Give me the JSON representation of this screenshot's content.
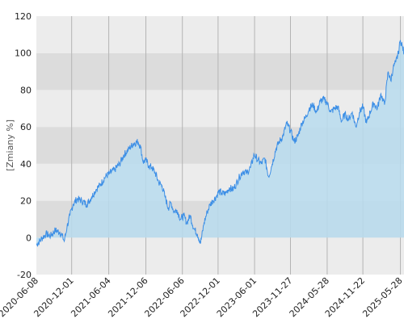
{
  "chart_data": {
    "type": "area",
    "title": "",
    "xlabel": "",
    "ylabel": "[Zmiany %]",
    "ylim": [
      -20,
      120
    ],
    "y_ticks": [
      -20,
      0,
      20,
      40,
      60,
      80,
      100,
      120
    ],
    "x_tick_labels": [
      "2020-06-08",
      "2020-12-01",
      "2021-06-04",
      "2021-12-06",
      "2022-06-06",
      "2022-12-01",
      "2023-06-01",
      "2023-11-27",
      "2024-05-28",
      "2024-11-22",
      "2025-05-28"
    ],
    "xlim": [
      "2020-06-08",
      "2025-06-15"
    ],
    "grid": true,
    "colors": {
      "line": "#3d8fe6",
      "fill": "#b8dcee",
      "fill_opacity": 0.85,
      "band_light": "#ececec",
      "band_dark": "#dcdcdc",
      "grid": "#b4b4b4"
    },
    "series": [
      {
        "x": [
          "2020-06-08",
          "2020-07-01",
          "2020-07-25",
          "2020-08-18",
          "2020-09-10",
          "2020-10-03",
          "2020-10-15",
          "2020-10-25",
          "2020-11-08",
          "2020-11-22",
          "2020-12-08",
          "2020-12-28",
          "2021-01-20",
          "2021-02-15",
          "2021-03-10",
          "2021-04-01",
          "2021-04-25",
          "2021-05-18",
          "2021-06-10",
          "2021-07-05",
          "2021-07-28",
          "2021-08-20",
          "2021-09-12",
          "2021-10-05",
          "2021-10-28",
          "2021-11-10",
          "2021-11-22",
          "2021-12-06",
          "2021-12-20",
          "2022-01-05",
          "2022-01-22",
          "2022-02-08",
          "2022-02-25",
          "2022-03-12",
          "2022-03-28",
          "2022-04-10",
          "2022-04-25",
          "2022-05-10",
          "2022-05-28",
          "2022-06-12",
          "2022-06-28",
          "2022-07-15",
          "2022-08-02",
          "2022-08-20",
          "2022-09-05",
          "2022-09-22",
          "2022-10-08",
          "2022-10-22",
          "2022-11-05",
          "2022-11-20",
          "2022-12-05",
          "2022-12-20",
          "2023-01-08",
          "2023-01-26",
          "2023-02-12",
          "2023-03-01",
          "2023-03-18",
          "2023-04-05",
          "2023-04-24",
          "2023-05-12",
          "2023-05-30",
          "2023-06-18",
          "2023-07-05",
          "2023-07-22",
          "2023-08-10",
          "2023-08-28",
          "2023-09-15",
          "2023-10-02",
          "2023-10-20",
          "2023-11-08",
          "2023-11-27",
          "2023-12-15",
          "2024-01-03",
          "2024-01-22",
          "2024-02-10",
          "2024-02-28",
          "2024-03-18",
          "2024-04-05",
          "2024-04-24",
          "2024-05-12",
          "2024-05-28",
          "2024-06-15",
          "2024-07-03",
          "2024-07-20",
          "2024-08-08",
          "2024-08-25",
          "2024-09-12",
          "2024-09-30",
          "2024-10-18",
          "2024-11-05",
          "2024-11-22",
          "2024-12-10",
          "2024-12-28",
          "2025-01-15",
          "2025-02-02",
          "2025-02-20",
          "2025-03-10",
          "2025-03-28",
          "2025-04-10",
          "2025-04-22",
          "2025-05-05",
          "2025-05-18",
          "2025-05-28",
          "2025-06-06",
          "2025-06-15"
        ],
        "y": [
          -4,
          -1,
          2,
          1,
          4,
          3,
          1,
          -2,
          6,
          12,
          18,
          21,
          20,
          18,
          22,
          26,
          29,
          33,
          35,
          37,
          40,
          45,
          48,
          51,
          52,
          49,
          41,
          42,
          39,
          38,
          35,
          30,
          28,
          22,
          16,
          19,
          14,
          15,
          10,
          12,
          8,
          12,
          5,
          2,
          -3,
          8,
          14,
          18,
          20,
          22,
          25,
          24,
          24,
          27,
          26,
          29,
          33,
          36,
          35,
          38,
          45,
          42,
          40,
          43,
          33,
          40,
          48,
          52,
          55,
          62,
          58,
          52,
          55,
          62,
          65,
          70,
          72,
          68,
          74,
          75,
          73,
          68,
          70,
          71,
          63,
          67,
          64,
          68,
          60,
          68,
          71,
          62,
          68,
          73,
          70,
          78,
          72,
          90,
          85,
          92,
          95,
          100,
          107,
          104,
          100
        ]
      }
    ]
  }
}
